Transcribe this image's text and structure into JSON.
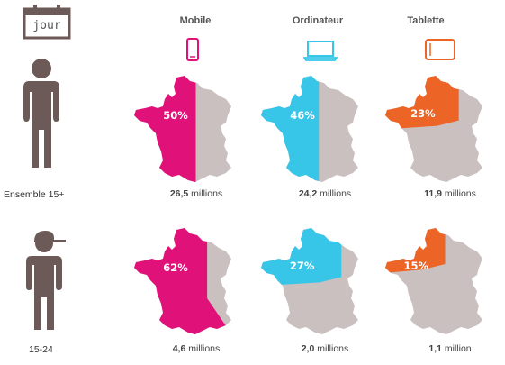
{
  "header": {
    "calendar_label": "jour"
  },
  "devices": [
    {
      "label": "Mobile",
      "icon": "smartphone-icon",
      "color": "#e0127a"
    },
    {
      "label": "Ordinateur",
      "icon": "laptop-icon",
      "color": "#38c6e8"
    },
    {
      "label": "Tablette",
      "icon": "tablet-icon",
      "color": "#ec6527"
    }
  ],
  "segments": [
    {
      "label": "Ensemble 15+",
      "icon": "person-icon",
      "cells": [
        {
          "percent": "50%",
          "value": 50,
          "count_number": "26,5",
          "count_unit": " millions"
        },
        {
          "percent": "46%",
          "value": 46,
          "count_number": "24,2",
          "count_unit": " millions"
        },
        {
          "percent": "23%",
          "value": 23,
          "count_number": "11,9",
          "count_unit": " millions"
        }
      ]
    },
    {
      "label": "15-24",
      "icon": "person-cap-icon",
      "cells": [
        {
          "percent": "62%",
          "value": 62,
          "count_number": "4,6",
          "count_unit": " millions"
        },
        {
          "percent": "27%",
          "value": 27,
          "count_number": "2,0",
          "count_unit": " millions"
        },
        {
          "percent": "15%",
          "value": 15,
          "count_number": "1,1",
          "count_unit": " million"
        }
      ]
    }
  ],
  "colors": {
    "map_base": "#c9c0bf",
    "person": "#6b5a57"
  }
}
